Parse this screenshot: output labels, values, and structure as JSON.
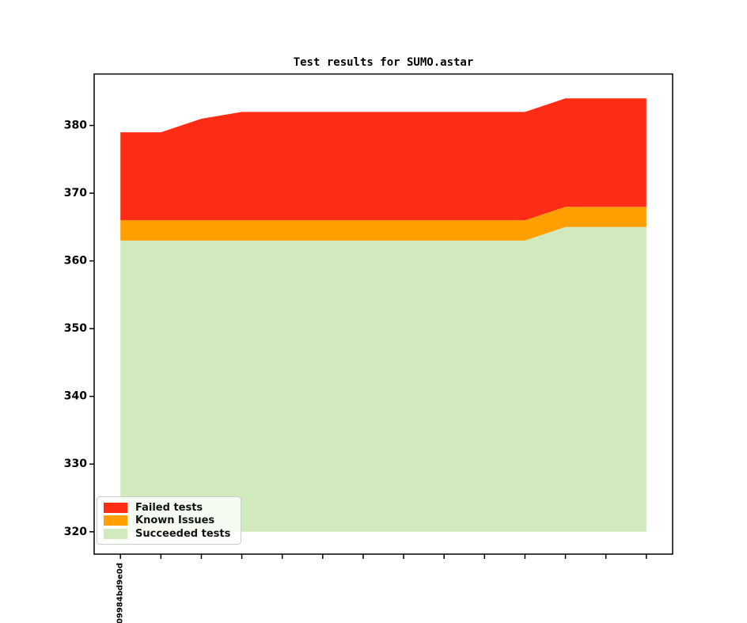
{
  "chart_data": {
    "type": "area",
    "stacked": true,
    "title": "Test results for SUMO.astar",
    "x_count": 14,
    "xtick_labels": [
      "09984bd9e0d",
      "",
      "",
      "",
      "",
      "",
      "",
      "",
      "",
      "",
      "",
      "",
      "",
      ""
    ],
    "series": [
      {
        "name": "Failed tests",
        "color": "#fd2d15",
        "values": [
          13,
          13,
          15,
          16,
          16,
          16,
          16,
          16,
          16,
          16,
          16,
          16,
          16,
          16
        ]
      },
      {
        "name": "Known Issues",
        "color": "#ffa000",
        "values": [
          3,
          3,
          3,
          3,
          3,
          3,
          3,
          3,
          3,
          3,
          3,
          3,
          3,
          3
        ]
      },
      {
        "name": "Succeeded tests",
        "color": "#d1eabd",
        "values": [
          363,
          363,
          363,
          363,
          363,
          363,
          363,
          363,
          363,
          363,
          363,
          365,
          365,
          365
        ]
      }
    ],
    "stack_bottom_to_top": [
      "Succeeded tests",
      "Known Issues",
      "Failed tests"
    ],
    "totals": [
      379,
      379,
      381,
      382,
      382,
      382,
      382,
      382,
      382,
      382,
      382,
      384,
      384,
      384
    ],
    "baseline": 320,
    "ylim": [
      316.7,
      387.6
    ],
    "xlim": [
      -0.65,
      13.65
    ],
    "yticks": [
      320,
      330,
      340,
      350,
      360,
      370,
      380
    ],
    "legend": {
      "position": "lower left",
      "entries": [
        "Failed tests",
        "Known Issues",
        "Succeeded tests"
      ]
    },
    "grid": false,
    "axis_color": "#000000",
    "text_color": "#000000",
    "background_color": "#ffffff"
  }
}
